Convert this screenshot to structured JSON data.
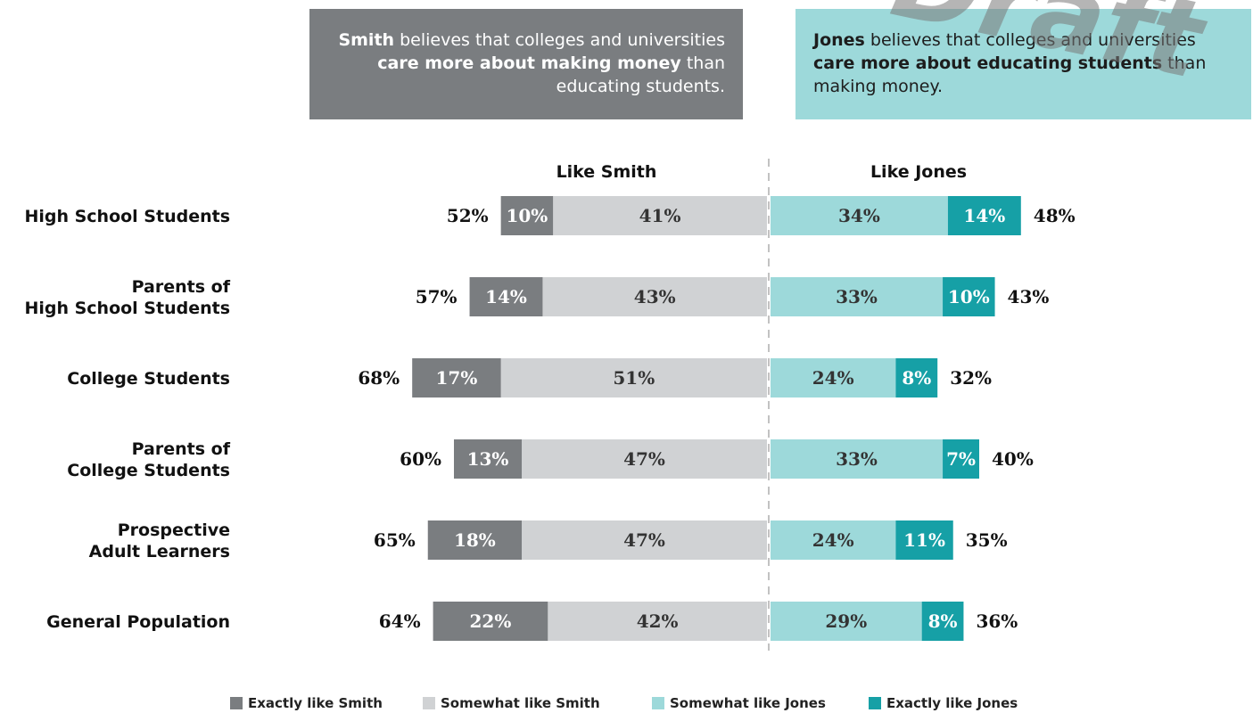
{
  "boxes": {
    "smith": {
      "bold1": "Smith",
      "text1": " believes that colleges and universities ",
      "bold2": "care more about making money",
      "text2": " than educating students."
    },
    "jones": {
      "bold1": "Jones",
      "text1": " believes that colleges and universities ",
      "bold2": "care more about educating students",
      "text2": " than making money."
    }
  },
  "watermark": "Draft",
  "colors": {
    "exactly_smith": "#7a7d80",
    "somewhat_smith": "#d0d2d4",
    "somewhat_jones": "#9dd9da",
    "exactly_jones": "#16a0a6"
  },
  "chart_data": {
    "type": "bar",
    "orientation": "horizontal-diverging",
    "column_headers": [
      "Like Smith",
      "Like Jones"
    ],
    "categories": [
      "High School Students",
      "Parents of\nHigh School Students",
      "College Students",
      "Parents of\nCollege Students",
      "Prospective\nAdult Learners",
      "General Population"
    ],
    "series": [
      {
        "name": "Exactly like Smith",
        "values": [
          10,
          14,
          17,
          13,
          18,
          22
        ]
      },
      {
        "name": "Somewhat like Smith",
        "values": [
          41,
          43,
          51,
          47,
          47,
          42
        ]
      },
      {
        "name": "Somewhat like Jones",
        "values": [
          34,
          33,
          24,
          33,
          24,
          29
        ]
      },
      {
        "name": "Exactly like Jones",
        "values": [
          14,
          10,
          8,
          7,
          11,
          8
        ]
      }
    ],
    "totals": {
      "smith": [
        52,
        57,
        68,
        60,
        65,
        64
      ],
      "jones": [
        48,
        43,
        32,
        40,
        35,
        36
      ]
    },
    "value_suffix": "%"
  }
}
